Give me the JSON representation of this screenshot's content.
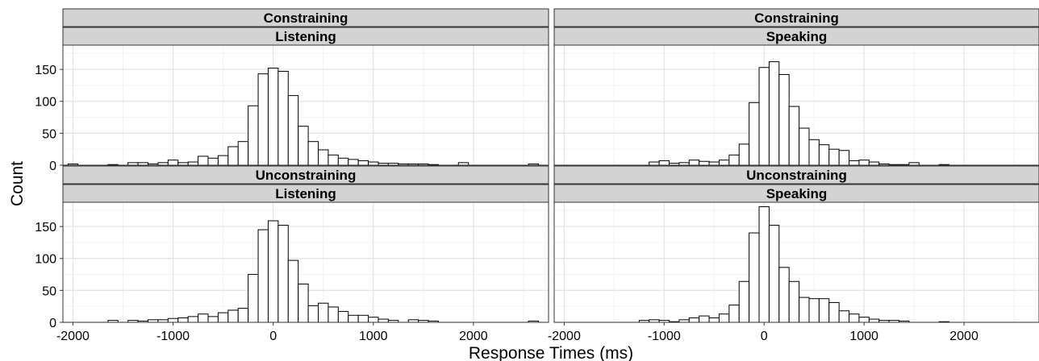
{
  "chart_data": {
    "type": "bar",
    "xlabel": "Response Times (ms)",
    "ylabel": "Count",
    "xlim": [
      -2100,
      2750
    ],
    "ylim": [
      0,
      188
    ],
    "x_ticks": [
      -2000,
      -1000,
      0,
      1000,
      2000
    ],
    "y_ticks": [
      0,
      50,
      100,
      150
    ],
    "bin_width": 100,
    "grid": true,
    "panels": [
      {
        "row": 0,
        "col": 0,
        "strips": [
          "Constraining",
          "Listening"
        ],
        "bins": [
          [
            -2000,
            2
          ],
          [
            -1600,
            1
          ],
          [
            -1400,
            4
          ],
          [
            -1300,
            4
          ],
          [
            -1200,
            2
          ],
          [
            -1100,
            4
          ],
          [
            -1000,
            8
          ],
          [
            -900,
            4
          ],
          [
            -800,
            5
          ],
          [
            -700,
            14
          ],
          [
            -600,
            11
          ],
          [
            -500,
            15
          ],
          [
            -400,
            29
          ],
          [
            -300,
            37
          ],
          [
            -200,
            93
          ],
          [
            -100,
            143
          ],
          [
            0,
            152
          ],
          [
            100,
            147
          ],
          [
            200,
            109
          ],
          [
            300,
            61
          ],
          [
            400,
            37
          ],
          [
            500,
            24
          ],
          [
            600,
            16
          ],
          [
            700,
            11
          ],
          [
            800,
            9
          ],
          [
            900,
            7
          ],
          [
            1000,
            5
          ],
          [
            1100,
            3
          ],
          [
            1200,
            3
          ],
          [
            1300,
            2
          ],
          [
            1400,
            2
          ],
          [
            1500,
            2
          ],
          [
            1600,
            1
          ],
          [
            1900,
            4
          ],
          [
            2600,
            2
          ]
        ]
      },
      {
        "row": 0,
        "col": 1,
        "strips": [
          "Constraining",
          "Speaking"
        ],
        "bins": [
          [
            -1100,
            5
          ],
          [
            -1000,
            7
          ],
          [
            -900,
            3
          ],
          [
            -800,
            4
          ],
          [
            -700,
            8
          ],
          [
            -600,
            6
          ],
          [
            -500,
            5
          ],
          [
            -400,
            8
          ],
          [
            -300,
            16
          ],
          [
            -200,
            33
          ],
          [
            -100,
            98
          ],
          [
            0,
            153
          ],
          [
            100,
            162
          ],
          [
            200,
            142
          ],
          [
            300,
            92
          ],
          [
            400,
            58
          ],
          [
            500,
            40
          ],
          [
            600,
            32
          ],
          [
            700,
            25
          ],
          [
            800,
            23
          ],
          [
            900,
            7
          ],
          [
            1000,
            8
          ],
          [
            1100,
            5
          ],
          [
            1200,
            2
          ],
          [
            1300,
            1
          ],
          [
            1400,
            1
          ],
          [
            1500,
            4
          ],
          [
            1800,
            1
          ]
        ]
      },
      {
        "row": 1,
        "col": 0,
        "strips": [
          "Unconstraining",
          "Listening"
        ],
        "bins": [
          [
            -1600,
            3
          ],
          [
            -1400,
            3
          ],
          [
            -1300,
            2
          ],
          [
            -1200,
            4
          ],
          [
            -1100,
            4
          ],
          [
            -1000,
            6
          ],
          [
            -900,
            7
          ],
          [
            -800,
            9
          ],
          [
            -700,
            13
          ],
          [
            -600,
            9
          ],
          [
            -500,
            15
          ],
          [
            -400,
            19
          ],
          [
            -300,
            22
          ],
          [
            -200,
            75
          ],
          [
            -100,
            145
          ],
          [
            0,
            159
          ],
          [
            100,
            152
          ],
          [
            200,
            97
          ],
          [
            300,
            60
          ],
          [
            400,
            26
          ],
          [
            500,
            30
          ],
          [
            600,
            24
          ],
          [
            700,
            17
          ],
          [
            800,
            11
          ],
          [
            900,
            11
          ],
          [
            1000,
            8
          ],
          [
            1100,
            5
          ],
          [
            1200,
            3
          ],
          [
            1400,
            4
          ],
          [
            1500,
            3
          ],
          [
            1600,
            2
          ],
          [
            2600,
            2
          ]
        ]
      },
      {
        "row": 1,
        "col": 1,
        "strips": [
          "Unconstraining",
          "Speaking"
        ],
        "bins": [
          [
            -1200,
            3
          ],
          [
            -1100,
            4
          ],
          [
            -1000,
            3
          ],
          [
            -900,
            1
          ],
          [
            -800,
            4
          ],
          [
            -700,
            7
          ],
          [
            -600,
            10
          ],
          [
            -500,
            7
          ],
          [
            -400,
            13
          ],
          [
            -300,
            27
          ],
          [
            -200,
            64
          ],
          [
            -100,
            140
          ],
          [
            0,
            181
          ],
          [
            100,
            152
          ],
          [
            200,
            86
          ],
          [
            300,
            64
          ],
          [
            400,
            39
          ],
          [
            500,
            37
          ],
          [
            600,
            37
          ],
          [
            700,
            31
          ],
          [
            800,
            18
          ],
          [
            900,
            13
          ],
          [
            1000,
            8
          ],
          [
            1100,
            5
          ],
          [
            1200,
            3
          ],
          [
            1300,
            3
          ],
          [
            1400,
            2
          ],
          [
            1800,
            1
          ]
        ]
      }
    ]
  }
}
